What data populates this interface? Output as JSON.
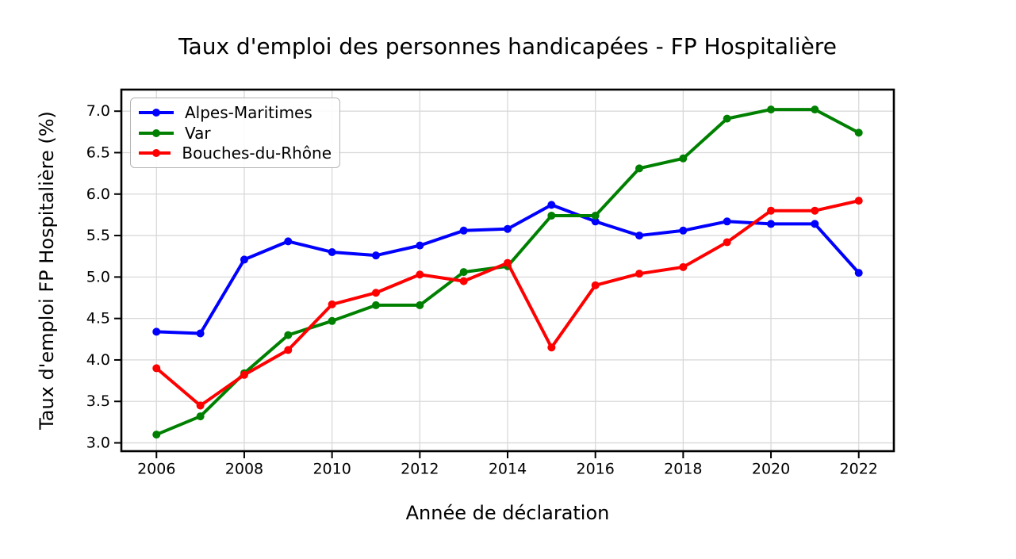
{
  "figure": {
    "background": "#ffffff"
  },
  "chart_data": {
    "type": "line",
    "title": "Taux d'emploi des personnes handicapées - FP Hospitalière",
    "xlabel": "Année de déclaration",
    "ylabel": "Taux d'emploi FP Hospitalière (%)",
    "x": [
      2006,
      2007,
      2008,
      2009,
      2010,
      2011,
      2012,
      2013,
      2014,
      2015,
      2016,
      2017,
      2018,
      2019,
      2020,
      2021,
      2022
    ],
    "series": [
      {
        "name": "Alpes-Maritimes",
        "color": "#0000ff",
        "values": [
          4.34,
          4.32,
          5.21,
          5.43,
          5.3,
          5.26,
          5.38,
          5.56,
          5.58,
          5.87,
          5.67,
          5.5,
          5.56,
          5.67,
          5.64,
          5.64,
          5.05
        ]
      },
      {
        "name": "Var",
        "color": "#008000",
        "values": [
          3.1,
          3.32,
          3.84,
          4.3,
          4.47,
          4.66,
          4.66,
          5.06,
          5.13,
          5.74,
          5.74,
          6.31,
          6.43,
          6.91,
          7.02,
          7.02,
          6.74
        ]
      },
      {
        "name": "Bouches-du-Rhône",
        "color": "#ff0000",
        "values": [
          3.9,
          3.45,
          3.82,
          4.12,
          4.67,
          4.81,
          5.03,
          4.95,
          5.17,
          4.15,
          4.9,
          5.04,
          5.12,
          5.42,
          5.8,
          5.8,
          5.92
        ]
      }
    ],
    "xticks": [
      2006,
      2008,
      2010,
      2012,
      2014,
      2016,
      2018,
      2020,
      2022
    ],
    "yticks": [
      3.0,
      3.5,
      4.0,
      4.5,
      5.0,
      5.5,
      6.0,
      6.5,
      7.0
    ],
    "xlim": [
      2005.2,
      2022.8
    ],
    "ylim": [
      2.9,
      7.26
    ],
    "grid": true,
    "legend_position": "upper-left",
    "colors": {
      "grid": "#d9d9d9",
      "axis": "#000000",
      "text": "#000000",
      "background": "#ffffff"
    }
  }
}
